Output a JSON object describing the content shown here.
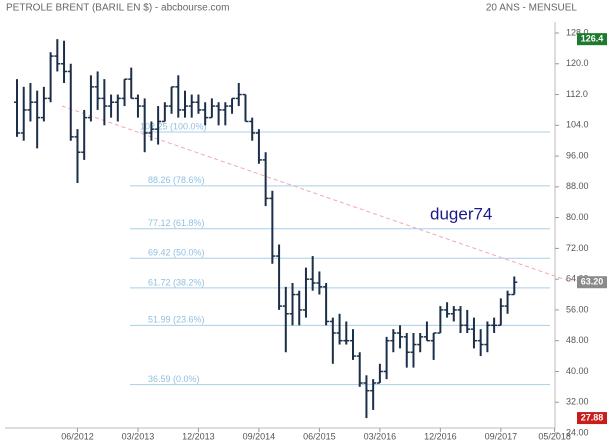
{
  "chart_data": {
    "type": "ohlc",
    "title": "PETROLE BRENT (BARIL EN $) - abcbourse.com",
    "subtitle": "20 ANS - MENSUEL",
    "annotation": "duger74",
    "categories": [
      null,
      null,
      null,
      null,
      null,
      null,
      null,
      null,
      null,
      "06/2012",
      null,
      null,
      null,
      null,
      null,
      null,
      null,
      null,
      "03/2013",
      null,
      null,
      null,
      null,
      null,
      null,
      null,
      null,
      "12/2013",
      null,
      null,
      null,
      null,
      null,
      null,
      null,
      null,
      "09/2014",
      null,
      null,
      null,
      null,
      null,
      null,
      null,
      null,
      "06/2015",
      null,
      null,
      null,
      null,
      null,
      null,
      null,
      null,
      "03/2016",
      null,
      null,
      null,
      null,
      null,
      null,
      null,
      null,
      "12/2016",
      null,
      null,
      null,
      null,
      null,
      null,
      null,
      null,
      "09/2017",
      null,
      null,
      null,
      null,
      null,
      null,
      null,
      "05/2018"
    ],
    "color": "#1b2f48",
    "open": [
      110,
      102,
      108,
      110,
      106,
      111,
      122,
      120,
      118,
      101,
      97,
      106,
      114,
      111,
      109,
      110,
      111,
      116,
      111,
      109,
      102,
      103,
      105,
      109,
      114,
      108,
      109,
      110,
      108,
      106,
      109,
      108,
      109,
      111,
      112,
      105,
      102,
      95,
      85,
      70,
      57,
      55,
      60,
      56,
      64,
      63,
      62,
      53,
      50,
      48,
      48,
      44,
      37,
      35,
      37,
      40,
      48,
      50,
      49,
      45,
      47,
      49,
      48,
      50,
      56,
      55,
      56,
      52,
      51,
      48,
      47,
      52,
      52,
      57,
      60,
      null,
      null,
      null,
      null,
      null,
      null
    ],
    "high": [
      116,
      114,
      115,
      113,
      114,
      123,
      126.4,
      126,
      120,
      103,
      108,
      117,
      118,
      116,
      112,
      112,
      116,
      119,
      112,
      111,
      105,
      109,
      110,
      114,
      117,
      113,
      112,
      112,
      110,
      111,
      110,
      110,
      111,
      115,
      112,
      106,
      103,
      97,
      87,
      73,
      62,
      63,
      61,
      67,
      70,
      66,
      63,
      54,
      55,
      53,
      51,
      45,
      39,
      38,
      42,
      49,
      51,
      52,
      50,
      50,
      50,
      53,
      50,
      57,
      58,
      57,
      57,
      56,
      54,
      51,
      53,
      54,
      59,
      61,
      64.7,
      null,
      null,
      null,
      null,
      null,
      null
    ],
    "low": [
      101,
      100,
      105,
      98,
      105,
      110,
      118,
      115,
      100,
      89,
      95,
      105,
      108,
      104,
      106,
      105,
      109,
      111,
      106,
      97,
      100,
      99,
      105,
      107,
      106,
      106,
      106,
      107,
      104,
      106,
      104,
      104,
      107,
      109,
      105,
      100,
      94,
      83,
      68,
      56,
      45,
      52,
      52,
      54,
      61,
      60,
      52,
      42,
      47,
      47,
      43,
      36,
      27.88,
      30,
      37,
      38,
      45,
      46,
      41,
      41,
      45,
      48,
      43,
      50,
      54,
      53,
      50,
      50,
      46,
      44,
      45,
      50,
      52,
      55,
      60,
      null,
      null,
      null,
      null,
      null,
      null
    ],
    "close": [
      102,
      108,
      110,
      106,
      111,
      122,
      120,
      118,
      101,
      97,
      106,
      114,
      111,
      109,
      110,
      111,
      116,
      111,
      109,
      102,
      103,
      105,
      109,
      114,
      108,
      109,
      110,
      108,
      106,
      109,
      108,
      109,
      111,
      112,
      105,
      102,
      95,
      85,
      70,
      57,
      55,
      60,
      56,
      64,
      63,
      62,
      53,
      50,
      48,
      48,
      44,
      37,
      35,
      37,
      40,
      48,
      50,
      49,
      45,
      47,
      49,
      48,
      50,
      56,
      55,
      56,
      52,
      51,
      48,
      47,
      52,
      52,
      57,
      60,
      63.2,
      null,
      null,
      null,
      null,
      null,
      null
    ],
    "ylim": [
      24,
      128
    ],
    "yticks": [
      {
        "value": 128,
        "label": "128.0"
      },
      {
        "value": 120,
        "label": "120.0"
      },
      {
        "value": 112,
        "label": "112.0"
      },
      {
        "value": 104,
        "label": "104.0"
      },
      {
        "value": 96,
        "label": "96.00"
      },
      {
        "value": 88,
        "label": "88.00"
      },
      {
        "value": 80,
        "label": "80.00"
      },
      {
        "value": 72,
        "label": "72.00"
      },
      {
        "value": 64,
        "label": "64.00"
      },
      {
        "value": 56,
        "label": "56.00"
      },
      {
        "value": 48,
        "label": "48.00"
      },
      {
        "value": 40,
        "label": "40.00"
      },
      {
        "value": 32,
        "label": "32.00"
      },
      {
        "value": 24,
        "label": "24.00"
      }
    ],
    "fib_levels": {
      "values": [
        102.25,
        88.26,
        77.12,
        69.42,
        61.72,
        51.99,
        36.59
      ],
      "value_labels": [
        "102.25 (100.0%)",
        "88.26 (78.6%)",
        "77.12 (61.8%)",
        "69.42 (50.0%)",
        "61.72 (38.2%)",
        "51.99 (23.6%)",
        "36.59 (0.0%)"
      ],
      "color": "#a9cfe8"
    },
    "markers": {
      "values": [
        126.4,
        63.2,
        27.88
      ],
      "value_labels": [
        "126.4",
        "63.20",
        "27.88"
      ],
      "colors": [
        "#1e7a2e",
        "#8a8a8a",
        "#c81d1d"
      ]
    }
  }
}
